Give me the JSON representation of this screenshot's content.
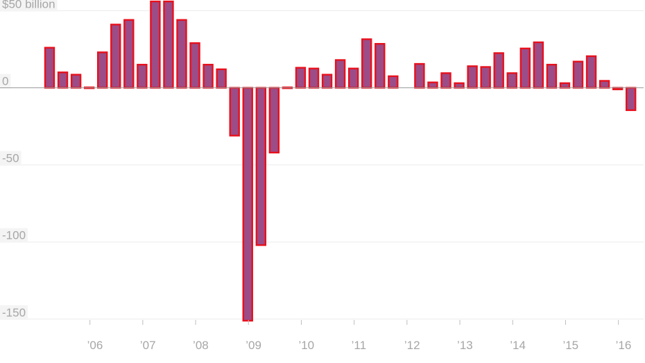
{
  "chart_data": {
    "type": "bar",
    "title": "",
    "xlabel": "",
    "ylabel": "",
    "y_unit_label": "$50 billion",
    "y_ticks": [
      {
        "value": 50,
        "label": "$50 billion"
      },
      {
        "value": 0,
        "label": "0"
      },
      {
        "value": -50,
        "label": "-50"
      },
      {
        "value": -100,
        "label": "-100"
      },
      {
        "value": -150,
        "label": "-150"
      }
    ],
    "ylim": [
      -151,
      56
    ],
    "x_ticks": [
      {
        "index": 3.5,
        "label": "’06"
      },
      {
        "index": 7.5,
        "label": "’07"
      },
      {
        "index": 11.5,
        "label": "’08"
      },
      {
        "index": 15.5,
        "label": "’09"
      },
      {
        "index": 19.5,
        "label": "’10"
      },
      {
        "index": 23.5,
        "label": "’11"
      },
      {
        "index": 27.5,
        "label": "’12"
      },
      {
        "index": 31.5,
        "label": "’13"
      },
      {
        "index": 35.5,
        "label": "’14"
      },
      {
        "index": 39.5,
        "label": "’15"
      },
      {
        "index": 43.5,
        "label": "’16"
      }
    ],
    "grid": true,
    "colors": {
      "bar_fill": "#9c4c86",
      "bar_stroke": "#e8101c",
      "grid": "#ececec",
      "axis_text": "#a6a6a6"
    },
    "values": [
      26,
      10,
      8.5,
      -0.5,
      23,
      41,
      44,
      15,
      56,
      56,
      44,
      29,
      15,
      12,
      -31,
      -151,
      -102,
      -42,
      0.5,
      13,
      12.5,
      8.5,
      18,
      12.5,
      31.5,
      28.5,
      7.5,
      0,
      15.5,
      3.5,
      9.5,
      3,
      14,
      13.5,
      22.5,
      9.5,
      25.5,
      29.5,
      15,
      3,
      17,
      20.5,
      4.5,
      -1,
      -14.5
    ]
  }
}
